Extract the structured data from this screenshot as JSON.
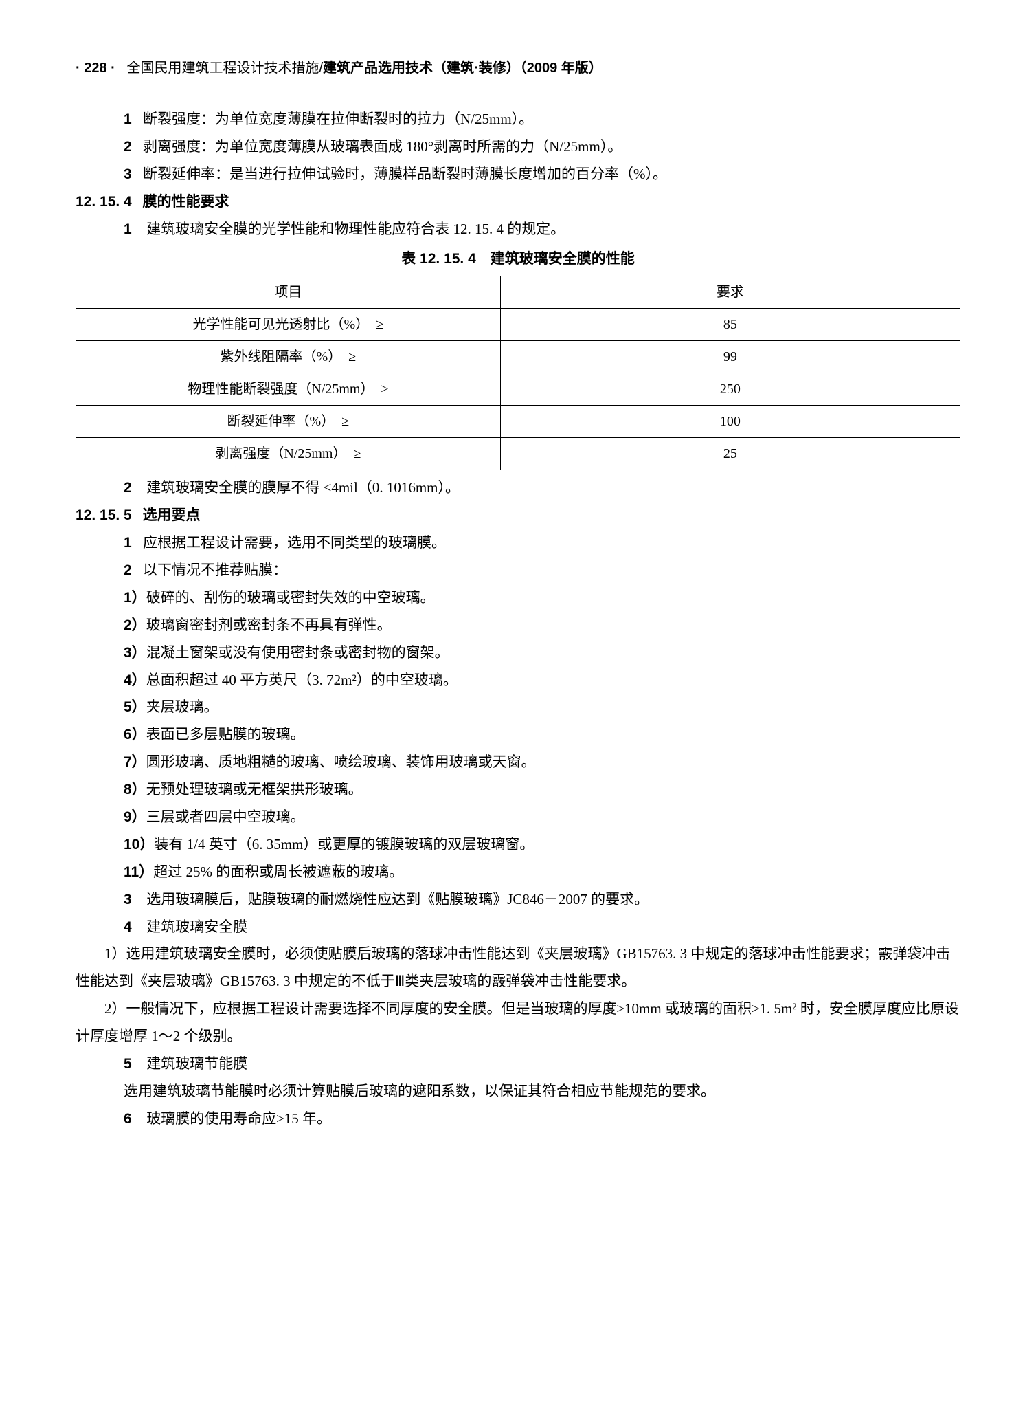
{
  "header": {
    "page_num": "· 228 ·",
    "title_light": "全国民用建筑工程设计技术措施/",
    "title_bold": "建筑产品选用技术（建筑·装修）（2009 年版）"
  },
  "defs": [
    {
      "n": "1",
      "t": "断裂强度：为单位宽度薄膜在拉伸断裂时的拉力（N/25mm）。"
    },
    {
      "n": "2",
      "t": "剥离强度：为单位宽度薄膜从玻璃表面成 180°剥离时所需的力（N/25mm）。"
    },
    {
      "n": "3",
      "t": "断裂延伸率：是当进行拉伸试验时，薄膜样品断裂时薄膜长度增加的百分率（%）。"
    }
  ],
  "sec_15_4": {
    "num": "12. 15. 4",
    "title": "膜的性能要求",
    "item1": {
      "n": "1",
      "t": "建筑玻璃安全膜的光学性能和物理性能应符合表 12. 15. 4 的规定。"
    },
    "table_title": "表 12. 15. 4　建筑玻璃安全膜的性能",
    "table": {
      "head": [
        "项目",
        "要求"
      ],
      "rows": [
        [
          "光学性能可见光透射比（%）　≥",
          "85"
        ],
        [
          "紫外线阻隔率（%）　≥",
          "99"
        ],
        [
          "物理性能断裂强度（N/25mm）　≥",
          "250"
        ],
        [
          "断裂延伸率（%）　≥",
          "100"
        ],
        [
          "剥离强度（N/25mm）　≥",
          "25"
        ]
      ]
    },
    "item2": {
      "n": "2",
      "t": "建筑玻璃安全膜的膜厚不得 <4mil（0. 1016mm）。"
    }
  },
  "sec_15_5": {
    "num": "12. 15. 5",
    "title": "选用要点",
    "items": [
      {
        "n": "1",
        "t": "应根据工程设计需要，选用不同类型的玻璃膜。"
      },
      {
        "n": "2",
        "t": "以下情况不推荐贴膜："
      }
    ],
    "sub": [
      {
        "n": "1）",
        "t": "破碎的、刮伤的玻璃或密封失效的中空玻璃。"
      },
      {
        "n": "2）",
        "t": "玻璃窗密封剂或密封条不再具有弹性。"
      },
      {
        "n": "3）",
        "t": "混凝土窗架或没有使用密封条或密封物的窗架。"
      },
      {
        "n": "4）",
        "t": "总面积超过 40 平方英尺（3. 72m²）的中空玻璃。"
      },
      {
        "n": "5）",
        "t": "夹层玻璃。"
      },
      {
        "n": "6）",
        "t": "表面已多层贴膜的玻璃。"
      },
      {
        "n": "7）",
        "t": "圆形玻璃、质地粗糙的玻璃、喷绘玻璃、装饰用玻璃或天窗。"
      },
      {
        "n": "8）",
        "t": "无预处理玻璃或无框架拱形玻璃。"
      },
      {
        "n": "9）",
        "t": "三层或者四层中空玻璃。"
      },
      {
        "n": "10）",
        "t": "装有 1/4 英寸（6. 35mm）或更厚的镀膜玻璃的双层玻璃窗。"
      },
      {
        "n": "11）",
        "t": "超过 25% 的面积或周长被遮蔽的玻璃。"
      }
    ],
    "item3": {
      "n": "3",
      "t": "选用玻璃膜后，贴膜玻璃的耐燃烧性应达到《贴膜玻璃》JC846－2007 的要求。"
    },
    "item4": {
      "n": "4",
      "t": "建筑玻璃安全膜"
    },
    "para4_1": "1）选用建筑玻璃安全膜时，必须使贴膜后玻璃的落球冲击性能达到《夹层玻璃》GB15763. 3 中规定的落球冲击性能要求；霰弹袋冲击性能达到《夹层玻璃》GB15763. 3 中规定的不低于Ⅲ类夹层玻璃的霰弹袋冲击性能要求。",
    "para4_2": "2）一般情况下，应根据工程设计需要选择不同厚度的安全膜。但是当玻璃的厚度≥10mm 或玻璃的面积≥1. 5m² 时，安全膜厚度应比原设计厚度增厚 1～2 个级别。",
    "item5": {
      "n": "5",
      "t": "建筑玻璃节能膜"
    },
    "para5": "选用建筑玻璃节能膜时必须计算贴膜后玻璃的遮阳系数，以保证其符合相应节能规范的要求。",
    "item6": {
      "n": "6",
      "t": "玻璃膜的使用寿命应≥15 年。"
    }
  }
}
